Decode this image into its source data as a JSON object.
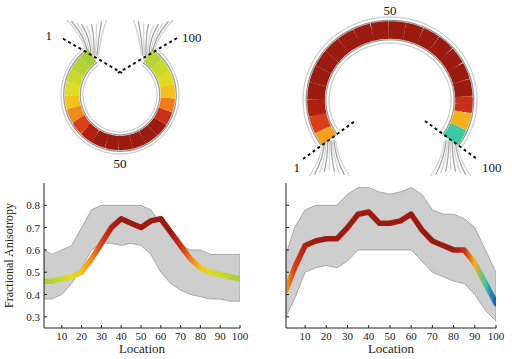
{
  "chart_data": [
    {
      "type": "line",
      "annotations": [
        "1",
        "50",
        "100"
      ],
      "y_label": "Fractional Anisotropy",
      "x_label": "Location",
      "x": [
        1,
        5,
        10,
        15,
        20,
        25,
        30,
        35,
        40,
        45,
        50,
        55,
        60,
        65,
        70,
        75,
        80,
        85,
        90,
        95,
        100
      ],
      "xlim": [
        1,
        100
      ],
      "xticks": [
        10,
        20,
        30,
        40,
        50,
        60,
        70,
        80,
        90,
        100
      ],
      "ylim": [
        0.25,
        0.9
      ],
      "yticks": [
        0.3,
        0.4,
        0.5,
        0.6,
        0.7,
        0.8
      ],
      "tick_labels": true,
      "series": [
        {
          "type": "band",
          "color": "#bdbdbd",
          "lower": [
            0.38,
            0.38,
            0.4,
            0.45,
            0.52,
            0.6,
            0.63,
            0.63,
            0.62,
            0.63,
            0.62,
            0.58,
            0.5,
            0.45,
            0.42,
            0.4,
            0.39,
            0.38,
            0.38,
            0.37,
            0.37
          ],
          "upper": [
            0.6,
            0.58,
            0.6,
            0.62,
            0.7,
            0.78,
            0.8,
            0.8,
            0.8,
            0.8,
            0.8,
            0.78,
            0.72,
            0.66,
            0.62,
            0.6,
            0.6,
            0.58,
            0.58,
            0.58,
            0.58
          ]
        },
        {
          "type": "line",
          "values": [
            0.46,
            0.46,
            0.47,
            0.48,
            0.5,
            0.56,
            0.63,
            0.7,
            0.74,
            0.72,
            0.7,
            0.73,
            0.74,
            0.68,
            0.62,
            0.56,
            0.52,
            0.5,
            0.49,
            0.48,
            0.47
          ],
          "colors": [
            "#a6ce39",
            "#b5d334",
            "#cbd82c",
            "#e0dc25",
            "#f2c41e",
            "#f08a1a",
            "#d8401a",
            "#b01e12",
            "#9b1b10",
            "#9b1b10",
            "#9b1b10",
            "#9b1b10",
            "#9b1b10",
            "#9b1b10",
            "#c8301a",
            "#f07a1c",
            "#f5c020",
            "#e0dc25",
            "#cbd82c",
            "#b5d334",
            "#a6ce39"
          ]
        }
      ]
    },
    {
      "type": "line",
      "annotations": [
        "1",
        "50",
        "100"
      ],
      "x_label": "Location",
      "x": [
        1,
        5,
        10,
        15,
        20,
        25,
        30,
        35,
        40,
        45,
        50,
        55,
        60,
        65,
        70,
        75,
        80,
        85,
        90,
        95,
        100
      ],
      "xlim": [
        1,
        100
      ],
      "xticks": [
        10,
        20,
        30,
        40,
        50,
        60,
        70,
        80,
        90,
        100
      ],
      "ylim": [
        0.25,
        0.9
      ],
      "yticks": [
        0.3,
        0.4,
        0.5,
        0.6,
        0.7,
        0.8
      ],
      "tick_labels": "x",
      "series": [
        {
          "type": "band",
          "color": "#bdbdbd",
          "lower": [
            0.3,
            0.38,
            0.5,
            0.52,
            0.53,
            0.52,
            0.55,
            0.6,
            0.6,
            0.6,
            0.6,
            0.6,
            0.6,
            0.55,
            0.5,
            0.48,
            0.46,
            0.45,
            0.4,
            0.33,
            0.28
          ],
          "upper": [
            0.58,
            0.7,
            0.78,
            0.8,
            0.8,
            0.8,
            0.85,
            0.88,
            0.88,
            0.86,
            0.85,
            0.86,
            0.88,
            0.85,
            0.78,
            0.76,
            0.76,
            0.74,
            0.7,
            0.6,
            0.5
          ]
        },
        {
          "type": "line",
          "values": [
            0.42,
            0.52,
            0.62,
            0.64,
            0.65,
            0.65,
            0.7,
            0.76,
            0.77,
            0.72,
            0.72,
            0.73,
            0.76,
            0.69,
            0.64,
            0.62,
            0.6,
            0.6,
            0.54,
            0.45,
            0.36
          ],
          "colors": [
            "#f5a01c",
            "#d8401a",
            "#b01e12",
            "#9b1b10",
            "#9b1b10",
            "#9b1b10",
            "#9b1b10",
            "#9b1b10",
            "#9b1b10",
            "#9b1b10",
            "#9b1b10",
            "#9b1b10",
            "#9b1b10",
            "#9b1b10",
            "#9b1b10",
            "#9b1b10",
            "#9b1b10",
            "#c8301a",
            "#f2b01e",
            "#3cc8a0",
            "#1e50c8"
          ]
        }
      ]
    }
  ]
}
